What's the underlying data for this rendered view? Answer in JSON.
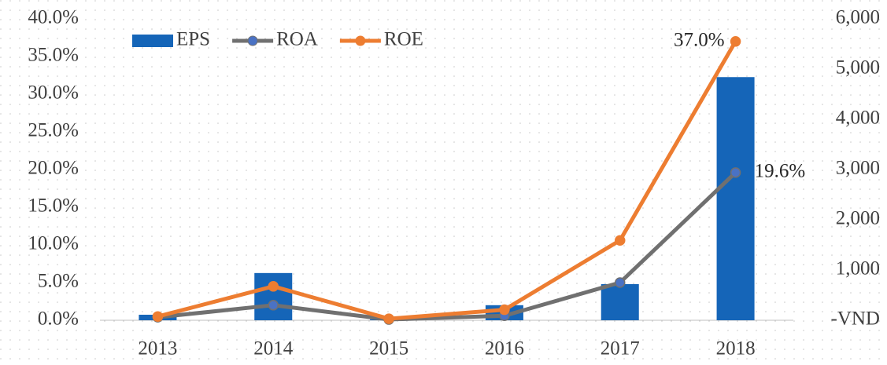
{
  "chart_data": {
    "type": "bar-line",
    "categories": [
      "2013",
      "2014",
      "2015",
      "2016",
      "2017",
      "2018"
    ],
    "series": [
      {
        "name": "EPS",
        "type": "bar",
        "axis": "y2",
        "color": "#1565b8",
        "values": [
          110,
          940,
          20,
          300,
          720,
          4840
        ]
      },
      {
        "name": "ROA",
        "type": "line",
        "color": "#707070",
        "marker_color": "#4a72c4",
        "values": [
          0.4,
          2.0,
          0.1,
          0.6,
          5.0,
          19.6
        ],
        "value_labels": [
          null,
          null,
          null,
          null,
          null,
          "19.6%"
        ]
      },
      {
        "name": "ROE",
        "type": "line",
        "color": "#ed7d31",
        "values": [
          0.5,
          4.5,
          0.2,
          1.4,
          10.6,
          37.0
        ],
        "value_labels": [
          null,
          null,
          null,
          null,
          null,
          "37.0%"
        ]
      }
    ],
    "ylim": [
      0,
      40
    ],
    "yticks": [
      {
        "value": 0,
        "label": "0.0%"
      },
      {
        "value": 5,
        "label": "5.0%"
      },
      {
        "value": 10,
        "label": "10.0%"
      },
      {
        "value": 15,
        "label": "15.0%"
      },
      {
        "value": 20,
        "label": "20.0%"
      },
      {
        "value": 25,
        "label": "25.0%"
      },
      {
        "value": 30,
        "label": "30.0%"
      },
      {
        "value": 35,
        "label": "35.0%"
      },
      {
        "value": 40,
        "label": "40.0%"
      }
    ],
    "y2lim": [
      0,
      6000
    ],
    "y2ticks": [
      {
        "value": 0,
        "label": "-VND"
      },
      {
        "value": 1000,
        "label": "1,000"
      },
      {
        "value": 2000,
        "label": "2,000"
      },
      {
        "value": 3000,
        "label": "3,000"
      },
      {
        "value": 4000,
        "label": "4,000"
      },
      {
        "value": 5000,
        "label": "5,000"
      },
      {
        "value": 6000,
        "label": "6,000"
      }
    ],
    "legend": "top-left"
  }
}
